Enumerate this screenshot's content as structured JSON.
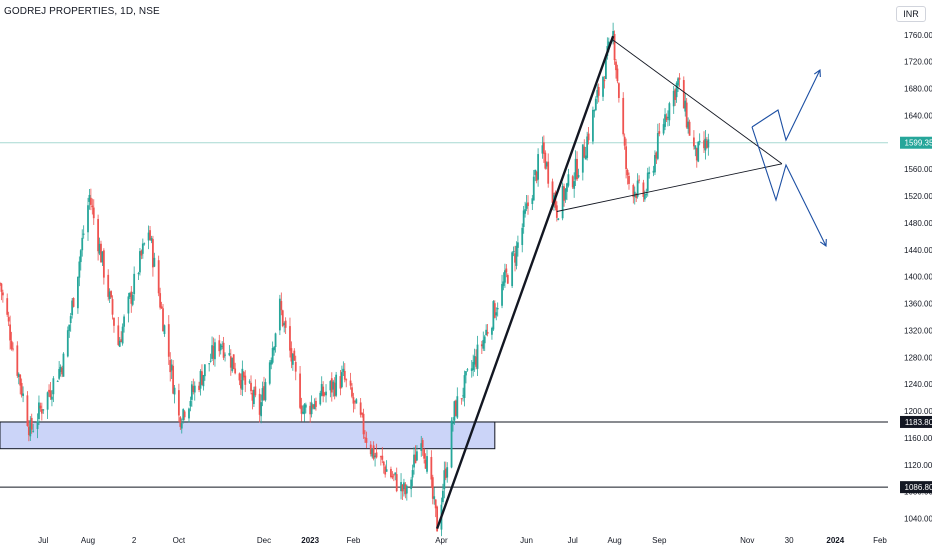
{
  "header": {
    "symbol_title": "GODREJ PROPERTIES, 1D, NSE",
    "currency": "INR"
  },
  "colors": {
    "up": "#26a69a",
    "down": "#ef5350",
    "zone_fill": "#c5cff7",
    "zone_stroke": "#131722",
    "line": "#131722",
    "arrow": "#1c4fa3",
    "price_line": "#a7d9d2",
    "grid_text": "#131722"
  },
  "chart_data": {
    "type": "candlestick",
    "symbol": "GODREJ PROPERTIES",
    "interval": "1D",
    "exchange": "NSE",
    "currency": "INR",
    "x_ticks": [
      {
        "label": "Jul",
        "date": "2022-07-01"
      },
      {
        "label": "Aug",
        "date": "2022-08-01"
      },
      {
        "label": "2",
        "date": "2022-09-02"
      },
      {
        "label": "Oct",
        "date": "2022-10-03"
      },
      {
        "label": "Dec",
        "date": "2022-12-01"
      },
      {
        "label": "2023",
        "date": "2023-01-02"
      },
      {
        "label": "Feb",
        "date": "2023-02-01"
      },
      {
        "label": "Apr",
        "date": "2023-04-03"
      },
      {
        "label": "Jun",
        "date": "2023-06-01"
      },
      {
        "label": "Jul",
        "date": "2023-07-03"
      },
      {
        "label": "Aug",
        "date": "2023-08-01"
      },
      {
        "label": "Sep",
        "date": "2023-09-01"
      },
      {
        "label": "Nov",
        "date": "2023-11-01"
      },
      {
        "label": "30",
        "date": "2023-11-30"
      },
      {
        "label": "2024",
        "date": "2024-01-01"
      },
      {
        "label": "Feb",
        "date": "2024-02-01"
      }
    ],
    "y_ticks": [
      1040,
      1080,
      1120,
      1160,
      1200,
      1240,
      1280,
      1320,
      1360,
      1400,
      1440,
      1480,
      1520,
      1560,
      1600,
      1640,
      1680,
      1720,
      1760
    ],
    "y_tick_labels": [
      "1040.00",
      "1080.00",
      "1120.00",
      "1160.00",
      "1200.00",
      "1240.00",
      "1280.00",
      "1320.00",
      "1360.00",
      "1400.00",
      "1440.00",
      "1480.00",
      "1520.00",
      "1560.00",
      "1600.00",
      "1640.00",
      "1680.00",
      "1720.00",
      "1760.00"
    ],
    "ylim": [
      1023,
      1782
    ],
    "last_price": 1599.35,
    "last_price_label": "1599.35",
    "horizontal_levels": [
      {
        "price": 1183.8,
        "label": "1183.80"
      },
      {
        "price": 1086.8,
        "label": "1086.80"
      }
    ],
    "zone": {
      "top": 1183.8,
      "bottom": 1144,
      "x_start": "2022-06-01",
      "x_end": "2023-05-10"
    },
    "key_points": [
      {
        "date": "2022-06-01",
        "close": 1390
      },
      {
        "date": "2022-06-22",
        "close": 1170
      },
      {
        "date": "2022-07-15",
        "close": 1275
      },
      {
        "date": "2022-08-02",
        "close": 1520
      },
      {
        "date": "2022-08-22",
        "close": 1300
      },
      {
        "date": "2022-09-12",
        "close": 1470
      },
      {
        "date": "2022-10-03",
        "close": 1190
      },
      {
        "date": "2022-11-01",
        "close": 1305
      },
      {
        "date": "2022-11-28",
        "close": 1200
      },
      {
        "date": "2022-12-12",
        "close": 1355
      },
      {
        "date": "2022-12-28",
        "close": 1200
      },
      {
        "date": "2023-01-25",
        "close": 1250
      },
      {
        "date": "2023-02-14",
        "close": 1140
      },
      {
        "date": "2023-03-10",
        "close": 1075
      },
      {
        "date": "2023-03-20",
        "close": 1170
      },
      {
        "date": "2023-03-31",
        "close": 1030
      },
      {
        "date": "2023-04-12",
        "close": 1200
      },
      {
        "date": "2023-05-01",
        "close": 1300
      },
      {
        "date": "2023-05-25",
        "close": 1440
      },
      {
        "date": "2023-06-12",
        "close": 1590
      },
      {
        "date": "2023-06-22",
        "close": 1500
      },
      {
        "date": "2023-07-10",
        "close": 1580
      },
      {
        "date": "2023-07-31",
        "close": 1760
      },
      {
        "date": "2023-08-10",
        "close": 1540
      },
      {
        "date": "2023-08-22",
        "close": 1520
      },
      {
        "date": "2023-09-05",
        "close": 1640
      },
      {
        "date": "2023-09-14",
        "close": 1690
      },
      {
        "date": "2023-09-26",
        "close": 1580
      },
      {
        "date": "2023-10-06",
        "close": 1599
      }
    ],
    "trendlines": [
      {
        "name": "rally",
        "from": {
          "date": "2023-03-31",
          "price": 1025
        },
        "to": {
          "date": "2023-07-31",
          "price": 1758
        }
      },
      {
        "name": "triangle-upper",
        "from": {
          "date": "2023-07-31",
          "price": 1752
        },
        "to": {
          "date": "2023-11-25",
          "price": 1568
        }
      },
      {
        "name": "triangle-lower",
        "from": {
          "date": "2023-06-22",
          "price": 1497
        },
        "to": {
          "date": "2023-11-25",
          "price": 1568
        }
      }
    ]
  }
}
